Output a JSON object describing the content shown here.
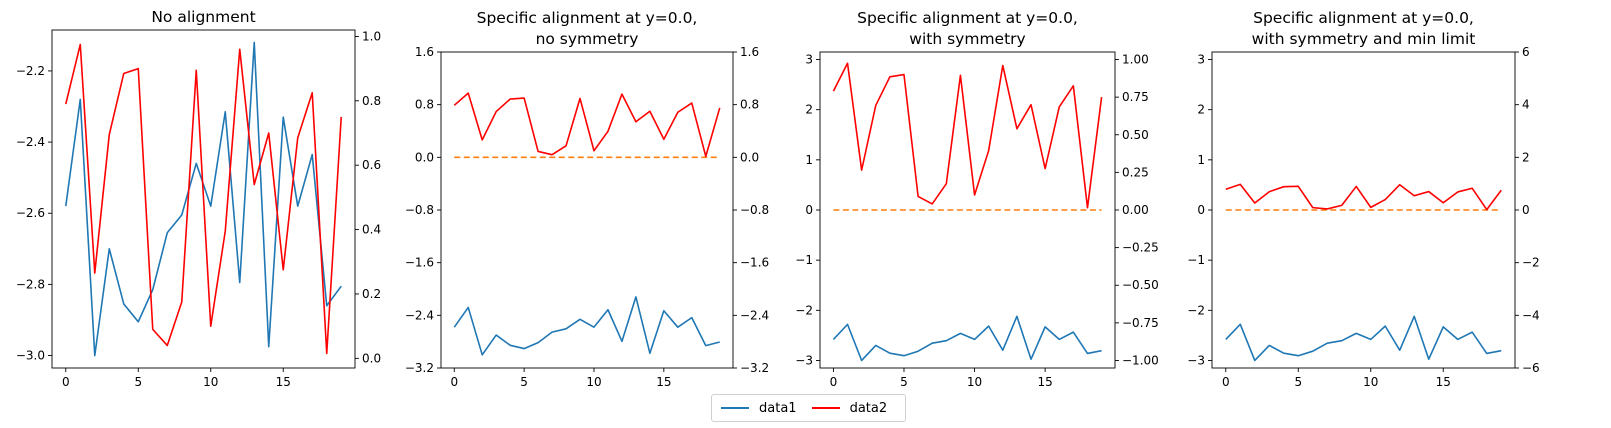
{
  "colors": {
    "data1": "#1f77b4",
    "data2": "#ff0000",
    "reference_line": "#ff7f0e"
  },
  "legend": {
    "entries": [
      {
        "label": "data1",
        "color": "#1f77b4"
      },
      {
        "label": "data2",
        "color": "#ff0000"
      }
    ],
    "placement": "bottom-center"
  },
  "chart_data": [
    {
      "type": "line",
      "title": "No alignment",
      "x": [
        0,
        1,
        2,
        3,
        4,
        5,
        6,
        7,
        8,
        9,
        10,
        11,
        12,
        13,
        14,
        15,
        16,
        17,
        18,
        19
      ],
      "series": [
        {
          "name": "data1",
          "axis": "left",
          "values": [
            -2.58,
            -2.28,
            -3.0,
            -2.7,
            -2.855,
            -2.905,
            -2.815,
            -2.655,
            -2.605,
            -2.46,
            -2.58,
            -2.315,
            -2.795,
            -2.12,
            -2.975,
            -2.33,
            -2.58,
            -2.435,
            -2.86,
            -2.805
          ]
        },
        {
          "name": "data2",
          "axis": "right",
          "values": [
            0.79,
            0.975,
            0.265,
            0.695,
            0.885,
            0.9,
            0.09,
            0.04,
            0.175,
            0.895,
            0.1,
            0.395,
            0.96,
            0.54,
            0.7,
            0.275,
            0.685,
            0.825,
            0.015,
            0.75
          ]
        }
      ],
      "left_axis": {
        "ylim": [
          -3.035,
          -2.085
        ],
        "ticks": [
          -3.0,
          -2.8,
          -2.6,
          -2.4,
          -2.2
        ],
        "tick_labels": [
          "−3.0",
          "−2.8",
          "−2.6",
          "−2.4",
          "−2.2"
        ]
      },
      "right_axis": {
        "ylim": [
          -0.03,
          1.02
        ],
        "ticks": [
          0.0,
          0.2,
          0.4,
          0.6,
          0.8,
          1.0
        ],
        "tick_labels": [
          "0.0",
          "0.2",
          "0.4",
          "0.6",
          "0.8",
          "1.0"
        ]
      },
      "xlim": [
        -0.95,
        19.95
      ],
      "xticks": [
        0,
        5,
        10,
        15
      ],
      "xtick_labels": [
        "0",
        "5",
        "10",
        "15"
      ],
      "reference_line": null,
      "grid": false
    },
    {
      "type": "line",
      "title": "Specific alignment at y=0.0,\nno symmetry",
      "title_lines": [
        "Specific alignment at y=0.0,",
        "no symmetry"
      ],
      "x": [
        0,
        1,
        2,
        3,
        4,
        5,
        6,
        7,
        8,
        9,
        10,
        11,
        12,
        13,
        14,
        15,
        16,
        17,
        18,
        19
      ],
      "series": [
        {
          "name": "data1",
          "axis": "left",
          "values": [
            -2.58,
            -2.28,
            -3.0,
            -2.7,
            -2.855,
            -2.905,
            -2.815,
            -2.655,
            -2.605,
            -2.46,
            -2.58,
            -2.315,
            -2.795,
            -2.12,
            -2.975,
            -2.33,
            -2.58,
            -2.435,
            -2.86,
            -2.805
          ]
        },
        {
          "name": "data2",
          "axis": "right",
          "values": [
            0.79,
            0.975,
            0.265,
            0.695,
            0.885,
            0.9,
            0.09,
            0.04,
            0.175,
            0.895,
            0.1,
            0.395,
            0.96,
            0.54,
            0.7,
            0.275,
            0.685,
            0.825,
            0.015,
            0.75
          ]
        }
      ],
      "left_axis": {
        "ylim": [
          -3.2,
          1.6
        ],
        "ticks": [
          -3.2,
          -2.4,
          -1.6,
          -0.8,
          0.0,
          0.8,
          1.6
        ],
        "tick_labels": [
          "−3.2",
          "−2.4",
          "−1.6",
          "−0.8",
          "0.0",
          "0.8",
          "1.6"
        ]
      },
      "right_axis": {
        "ylim": [
          -3.2,
          1.6
        ],
        "ticks": [
          -3.2,
          -2.4,
          -1.6,
          -0.8,
          0.0,
          0.8,
          1.6
        ],
        "tick_labels": [
          "−3.2",
          "−2.4",
          "−1.6",
          "−0.8",
          "0.0",
          "0.8",
          "1.6"
        ]
      },
      "xlim": [
        -0.95,
        19.95
      ],
      "xticks": [
        0,
        5,
        10,
        15
      ],
      "xtick_labels": [
        "0",
        "5",
        "10",
        "15"
      ],
      "reference_line": {
        "y": 0.0,
        "style": "dashed"
      },
      "grid": false
    },
    {
      "type": "line",
      "title": "Specific alignment at y=0.0,\nwith symmetry",
      "title_lines": [
        "Specific alignment at y=0.0,",
        "with symmetry"
      ],
      "x": [
        0,
        1,
        2,
        3,
        4,
        5,
        6,
        7,
        8,
        9,
        10,
        11,
        12,
        13,
        14,
        15,
        16,
        17,
        18,
        19
      ],
      "series": [
        {
          "name": "data1",
          "axis": "left",
          "values": [
            -2.58,
            -2.28,
            -3.0,
            -2.7,
            -2.855,
            -2.905,
            -2.815,
            -2.655,
            -2.605,
            -2.46,
            -2.58,
            -2.315,
            -2.795,
            -2.12,
            -2.975,
            -2.33,
            -2.58,
            -2.435,
            -2.86,
            -2.805
          ]
        },
        {
          "name": "data2",
          "axis": "right",
          "values": [
            0.79,
            0.975,
            0.265,
            0.695,
            0.885,
            0.9,
            0.09,
            0.04,
            0.175,
            0.895,
            0.1,
            0.395,
            0.96,
            0.54,
            0.7,
            0.275,
            0.685,
            0.825,
            0.015,
            0.75
          ]
        }
      ],
      "left_axis": {
        "ylim": [
          -3.15,
          3.15
        ],
        "ticks": [
          -3,
          -2,
          -1,
          0,
          1,
          2,
          3
        ],
        "tick_labels": [
          "−3",
          "−2",
          "−1",
          "0",
          "1",
          "2",
          "3"
        ]
      },
      "right_axis": {
        "ylim": [
          -1.05,
          1.05
        ],
        "ticks": [
          -1.0,
          -0.75,
          -0.5,
          -0.25,
          0.0,
          0.25,
          0.5,
          0.75,
          1.0
        ],
        "tick_labels": [
          "−1.00",
          "−0.75",
          "−0.50",
          "−0.25",
          "0.00",
          "0.25",
          "0.50",
          "0.75",
          "1.00"
        ]
      },
      "xlim": [
        -0.95,
        19.95
      ],
      "xticks": [
        0,
        5,
        10,
        15
      ],
      "xtick_labels": [
        "0",
        "5",
        "10",
        "15"
      ],
      "reference_line": {
        "y": 0.0,
        "style": "dashed"
      },
      "grid": false
    },
    {
      "type": "line",
      "title": "Specific alignment at y=0.0,\nwith symmetry and min limit",
      "title_lines": [
        "Specific alignment at y=0.0,",
        "with symmetry and min limit"
      ],
      "x": [
        0,
        1,
        2,
        3,
        4,
        5,
        6,
        7,
        8,
        9,
        10,
        11,
        12,
        13,
        14,
        15,
        16,
        17,
        18,
        19
      ],
      "series": [
        {
          "name": "data1",
          "axis": "left",
          "values": [
            -2.58,
            -2.28,
            -3.0,
            -2.7,
            -2.855,
            -2.905,
            -2.815,
            -2.655,
            -2.605,
            -2.46,
            -2.58,
            -2.315,
            -2.795,
            -2.12,
            -2.975,
            -2.33,
            -2.58,
            -2.435,
            -2.86,
            -2.805
          ]
        },
        {
          "name": "data2",
          "axis": "right",
          "values": [
            0.79,
            0.975,
            0.265,
            0.695,
            0.885,
            0.9,
            0.09,
            0.04,
            0.175,
            0.895,
            0.1,
            0.395,
            0.96,
            0.54,
            0.7,
            0.275,
            0.685,
            0.825,
            0.015,
            0.75
          ]
        }
      ],
      "left_axis": {
        "ylim": [
          -3.15,
          3.15
        ],
        "ticks": [
          -3,
          -2,
          -1,
          0,
          1,
          2,
          3
        ],
        "tick_labels": [
          "−3",
          "−2",
          "−1",
          "0",
          "1",
          "2",
          "3"
        ]
      },
      "right_axis": {
        "ylim": [
          -6,
          6
        ],
        "ticks": [
          -6,
          -4,
          -2,
          0,
          2,
          4,
          6
        ],
        "tick_labels": [
          "−6",
          "−4",
          "−2",
          "0",
          "2",
          "4",
          "6"
        ]
      },
      "xlim": [
        -0.95,
        19.95
      ],
      "xticks": [
        0,
        5,
        10,
        15
      ],
      "xtick_labels": [
        "0",
        "5",
        "10",
        "15"
      ],
      "reference_line": {
        "y": 0.0,
        "style": "dashed"
      },
      "grid": false
    }
  ]
}
